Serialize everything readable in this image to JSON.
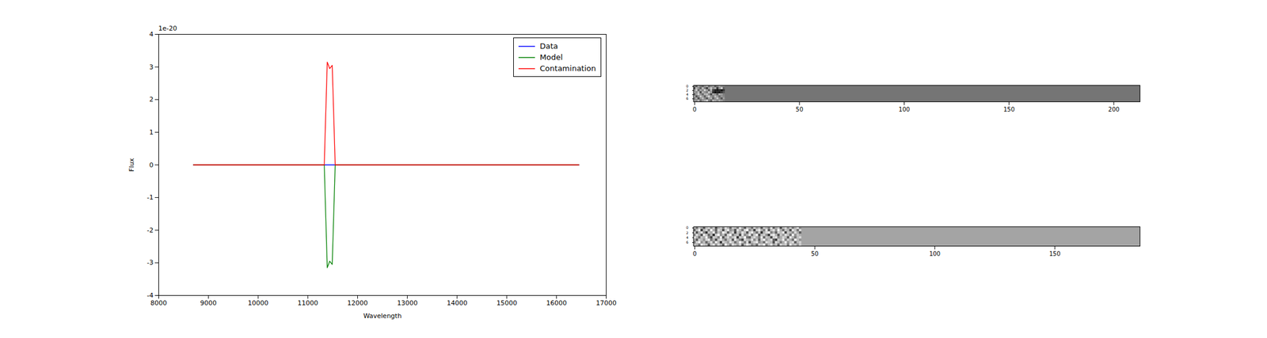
{
  "chart_data": [
    {
      "type": "line",
      "x_label": "Wavelength",
      "y_label": "Flux",
      "annotations": [
        "1e-20"
      ],
      "x": [
        8700,
        11330,
        11390,
        11440,
        11490,
        11550,
        16450
      ],
      "series": [
        {
          "name": "Data",
          "color": "#0000ff",
          "values": [
            0,
            0,
            0,
            0,
            0,
            0,
            0
          ]
        },
        {
          "name": "Model",
          "color": "#008000",
          "values": [
            0,
            0,
            -3.15,
            -2.95,
            -3.05,
            0,
            0
          ]
        },
        {
          "name": "Contamination",
          "color": "#ff0000",
          "values": [
            0,
            0,
            3.15,
            2.95,
            3.05,
            0,
            0
          ]
        }
      ],
      "xlim": [
        8000,
        17000
      ],
      "xticks": [
        8000,
        9000,
        10000,
        11000,
        12000,
        13000,
        14000,
        15000,
        16000,
        17000
      ],
      "ylim": [
        -4,
        4
      ],
      "yticks": [
        -4,
        -3,
        -2,
        -1,
        0,
        1,
        2,
        3,
        4
      ],
      "legend": "upper right"
    },
    {
      "type": "heatmap",
      "xlim": [
        -0.5,
        212.5
      ],
      "xticks": [
        0,
        50,
        100,
        150,
        200
      ],
      "ylim": [
        7.5,
        -0.5
      ],
      "yticks": [
        0,
        2,
        4,
        6
      ],
      "zlim": [
        -1.1,
        1.3
      ],
      "background": 0,
      "cells": [
        [
          0.2,
          -0.3,
          0.5,
          0.1,
          -0.2,
          0.3,
          0.6,
          -0.1,
          0.2,
          0.4,
          -0.3,
          0.1,
          0.5,
          0.2,
          0.1
        ],
        [
          -0.4,
          0.6,
          0.3,
          -0.2,
          0.7,
          0.1,
          -0.5,
          0.4,
          0.8,
          0.2,
          0.5,
          -0.6,
          0.3,
          0.9,
          -0.2
        ],
        [
          0.3,
          0.8,
          -0.1,
          0.5,
          0.2,
          0.9,
          0.4,
          -0.3,
          0.6,
          -0.5,
          -0.8,
          -0.9,
          -0.7,
          -1.0,
          -0.6
        ],
        [
          0.5,
          0.2,
          0.7,
          -0.4,
          0.6,
          0.3,
          0.1,
          0.8,
          0.4,
          -0.7,
          -1.0,
          -0.8,
          -0.9,
          -0.6,
          -0.3
        ],
        [
          -0.2,
          0.4,
          0.9,
          0.3,
          -0.1,
          0.6,
          0.7,
          0.2,
          -0.4,
          0.5,
          0.3,
          -0.2,
          0.6,
          0.4,
          0.1
        ],
        [
          0.6,
          -0.3,
          0.2,
          0.8,
          0.4,
          -0.2,
          0.5,
          0.9,
          0.3,
          0.1,
          0.7,
          0.4,
          -0.1,
          0.3,
          0.2
        ],
        [
          0.1,
          0.5,
          -0.4,
          0.3,
          0.7,
          0.2,
          -0.3,
          0.4,
          0.6,
          -0.2,
          0.3,
          0.8,
          0.2,
          -0.3,
          0.4
        ],
        [
          0.4,
          0.2,
          0.6,
          -0.1,
          0.3,
          0.5,
          0.8,
          0.1,
          -0.2,
          0.6,
          0.4,
          0.2,
          0.5,
          0.3,
          0.1
        ]
      ]
    },
    {
      "type": "heatmap",
      "xlim": [
        -0.5,
        185.5
      ],
      "xticks": [
        0,
        50,
        100,
        150
      ],
      "ylim": [
        7.5,
        -0.5
      ],
      "yticks": [
        0,
        2,
        4,
        6
      ],
      "zlim": [
        -1.8,
        1
      ],
      "background": 0,
      "cells": [
        [
          0.2,
          -0.5,
          0.4,
          0.1,
          -0.8,
          0.3,
          0.6,
          -0.2,
          0.5,
          -0.9,
          0.1,
          0.4,
          -0.3,
          0.7,
          0.2,
          -0.6,
          0.5,
          0.3,
          -0.4,
          0.8,
          0.1,
          -0.7,
          0.4,
          0.2,
          -0.5,
          0.6,
          -0.1,
          0.3,
          -0.8,
          0.5,
          0.2,
          -0.3,
          0.7,
          -0.6,
          0.1,
          0.4,
          -0.9,
          0.3,
          0.6,
          -0.2,
          0.5,
          -0.4,
          0.2,
          0.7,
          -0.3
        ],
        [
          -0.6,
          0.3,
          0.8,
          -1.2,
          0.2,
          0.5,
          -0.4,
          0.9,
          0.1,
          -0.7,
          0.6,
          0.3,
          -1.0,
          0.4,
          0.8,
          -0.2,
          0.1,
          -0.9,
          0.7,
          0.2,
          -0.5,
          0.6,
          0.9,
          -0.3,
          0.2,
          -1.1,
          0.5,
          0.8,
          0.1,
          -0.4,
          0.7,
          -0.8,
          0.3,
          0.6,
          -0.2,
          0.9,
          0.1,
          -0.6,
          0.4,
          0.2,
          -1.0,
          0.7,
          0.3,
          -0.5,
          0.6
        ],
        [
          0.5,
          -0.9,
          0.2,
          0.7,
          -0.3,
          -1.3,
          0.4,
          0.1,
          0.8,
          -0.6,
          0.3,
          -0.2,
          0.9,
          0.5,
          -0.8,
          0.2,
          0.6,
          -1.2,
          0.4,
          -0.1,
          0.7,
          0.3,
          -0.9,
          0.5,
          0.8,
          0.1,
          -0.6,
          0.4,
          -1.3,
          0.2,
          0.6,
          0.9,
          -0.4,
          0.1,
          -0.7,
          0.5,
          0.3,
          0.8,
          -1.1,
          0.4,
          0.2,
          -0.3,
          0.6,
          0.1,
          -0.8
        ],
        [
          -0.3,
          0.6,
          0.1,
          -1.0,
          0.8,
          0.4,
          -0.7,
          0.2,
          -1.4,
          0.5,
          0.9,
          -0.2,
          0.3,
          -0.8,
          0.6,
          1.0,
          -0.5,
          0.2,
          0.4,
          -1.1,
          0.7,
          -0.3,
          0.1,
          0.8,
          -0.6,
          0.4,
          0.9,
          -1.0,
          0.3,
          0.5,
          -0.2,
          -1.2,
          0.6,
          0.8,
          0.2,
          -0.9,
          0.4,
          -0.1,
          0.7,
          0.3,
          -0.6,
          0.9,
          -0.2,
          0.4,
          0.1
        ],
        [
          0.7,
          0.2,
          -0.6,
          0.4,
          0.1,
          0.9,
          -0.3,
          -1.1,
          0.5,
          0.3,
          -0.4,
          0.8,
          -0.9,
          0.2,
          0.6,
          -0.1,
          0.4,
          0.7,
          -1.3,
          0.5,
          0.2,
          0.9,
          -0.5,
          -0.8,
          0.3,
          0.6,
          0.1,
          -0.4,
          0.8,
          -0.7,
          0.4,
          0.2,
          -1.0,
          0.5,
          0.7,
          -0.3,
          0.1,
          0.6,
          0.3,
          -0.9,
          0.8,
          0.2,
          -0.5,
          0.3,
          0.6
        ],
        [
          0.1,
          -0.8,
          0.5,
          0.3,
          -0.2,
          0.6,
          0.8,
          -0.5,
          0.2,
          -1.0,
          0.4,
          0.7,
          0.1,
          -0.6,
          0.3,
          0.5,
          -0.9,
          0.8,
          0.2,
          -0.4,
          -1.1,
          0.6,
          0.3,
          0.1,
          0.7,
          -0.3,
          0.4,
          -0.8,
          0.5,
          0.9,
          -0.1,
          0.3,
          0.6,
          -0.7,
          -1.2,
          0.4,
          0.2,
          0.8,
          -0.4,
          0.5,
          0.1,
          -0.6,
          0.9,
          0.3,
          -0.2
        ],
        [
          -0.4,
          0.5,
          0.9,
          -0.2,
          0.3,
          -0.7,
          0.1,
          0.6,
          -0.4,
          0.8,
          0.2,
          -1.2,
          0.5,
          0.3,
          -0.1,
          0.7,
          0.4,
          -0.6,
          0.1,
          0.9,
          0.3,
          -0.4,
          0.6,
          -1.0,
          0.2,
          0.5,
          0.8,
          -0.3,
          0.1,
          -0.6,
          0.7,
          0.4,
          0.2,
          -0.9,
          0.6,
          0.3,
          -0.5,
          0.1,
          0.8,
          -0.2,
          0.4,
          0.6,
          -0.8,
          0.2,
          0.5
        ],
        [
          0.3,
          0.1,
          -0.5,
          0.7,
          0.4,
          0.2,
          -0.9,
          0.3,
          0.6,
          -0.2,
          0.5,
          0.1,
          -0.7,
          0.8,
          0.2,
          -0.4,
          0.6,
          0.3,
          -0.1,
          0.5,
          -0.8,
          0.2,
          0.7,
          0.4,
          -0.3,
          0.1,
          -0.6,
          0.5,
          0.3,
          0.8,
          -0.4,
          0.2,
          0.6,
          -0.1,
          0.3,
          -0.7,
          0.5,
          0.2,
          0.4,
          -0.5,
          0.7,
          0.1,
          0.3,
          -0.2,
          0.4
        ]
      ]
    }
  ]
}
